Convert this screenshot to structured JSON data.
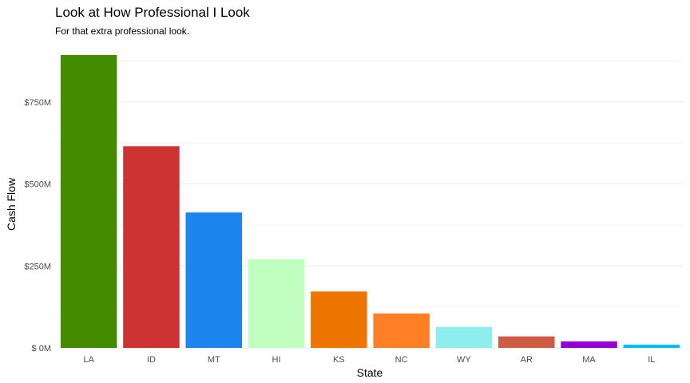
{
  "chart_data": {
    "type": "bar",
    "title": "Look at How Professional I Look",
    "subtitle": "For that extra professional look.",
    "xlabel": "State",
    "ylabel": "Cash Flow",
    "categories": [
      "LA",
      "ID",
      "MT",
      "HI",
      "KS",
      "NC",
      "WY",
      "AR",
      "MA",
      "IL"
    ],
    "values": [
      893000000,
      615000000,
      413000000,
      270000000,
      172000000,
      105000000,
      64000000,
      35000000,
      20000000,
      10000000
    ],
    "colors": [
      "#458B00",
      "#CD3333",
      "#1C86EE",
      "#C1FFC1",
      "#EE7600",
      "#FF7F24",
      "#8EEEEE",
      "#CD5B45",
      "#9400D3",
      "#00BFFF"
    ],
    "ylim": [
      0,
      893000000
    ],
    "yticks": [
      0,
      250000000,
      500000000,
      750000000
    ],
    "ytick_labels": [
      "$ 0M",
      "$250M",
      "$500M",
      "$750M"
    ],
    "grid": true,
    "legend": "none"
  }
}
